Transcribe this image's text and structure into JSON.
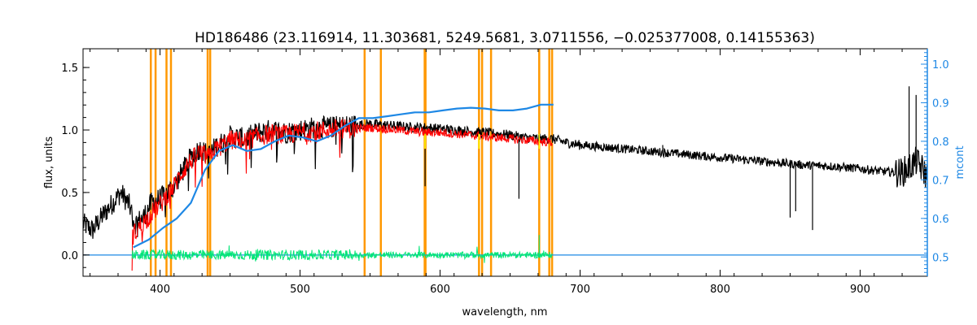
{
  "chart_data": {
    "type": "line",
    "title": "HD186486   (23.116914, 11.303681, 5249.5681, 3.0711556, −0.025377008, 0.14155363)",
    "xlabel": "wavelength, nm",
    "ylabel": "flux, units",
    "y2label": "mcont",
    "xlim": [
      345,
      948
    ],
    "ylim": [
      -0.17,
      1.65
    ],
    "y2lim": [
      0.45,
      1.04
    ],
    "x_ticks": [
      400,
      500,
      600,
      700,
      800,
      900
    ],
    "y_ticks": [
      "0.0",
      "0.5",
      "1.0",
      "1.5"
    ],
    "y2_ticks": [
      "0.5",
      "0.6",
      "0.7",
      "0.8",
      "0.9",
      "1.0"
    ],
    "grid": false,
    "colors": {
      "observed": "#000000",
      "model": "#ff0000",
      "residual": "#00e676",
      "continuum": "#1e88e5",
      "masks": "#ff9800",
      "model_lines": "#ffff00"
    },
    "mask_lines_nm": [
      393.4,
      396.8,
      404.6,
      407.8,
      434.0,
      435.8,
      546.1,
      557.7,
      589.0,
      589.6,
      627.8,
      630.0,
      636.4,
      670.8,
      678.0,
      680.0
    ],
    "series": [
      {
        "key": "observed",
        "x": [
          345,
          352,
          358,
          365,
          372,
          378,
          382,
          388,
          394,
          400,
          405,
          410,
          415,
          420,
          428,
          435,
          440,
          445,
          450,
          460,
          470,
          480,
          490,
          500,
          510,
          520,
          530,
          540,
          550,
          560,
          570,
          580,
          590,
          600,
          610,
          620,
          630,
          640,
          650,
          660,
          670,
          680,
          690,
          700,
          720,
          740,
          760,
          780,
          800,
          820,
          840,
          860,
          880,
          900,
          915,
          925,
          930,
          935,
          940,
          945,
          948
        ],
        "y": [
          0.25,
          0.2,
          0.3,
          0.4,
          0.5,
          0.4,
          0.25,
          0.3,
          0.42,
          0.45,
          0.5,
          0.55,
          0.65,
          0.75,
          0.85,
          0.8,
          0.87,
          0.9,
          0.95,
          0.93,
          0.98,
          1.0,
          0.98,
          1.0,
          1.02,
          1.02,
          1.03,
          1.04,
          1.05,
          1.04,
          1.03,
          1.02,
          1.02,
          1.01,
          1.0,
          0.99,
          0.98,
          0.97,
          0.96,
          0.94,
          0.93,
          0.93,
          0.9,
          0.88,
          0.86,
          0.84,
          0.82,
          0.8,
          0.78,
          0.76,
          0.74,
          0.72,
          0.71,
          0.69,
          0.67,
          0.66,
          0.66,
          0.7,
          0.75,
          0.68,
          0.62
        ]
      },
      {
        "key": "model",
        "x": [
          380,
          385,
          390,
          395,
          400,
          405,
          410,
          415,
          420,
          428,
          435,
          440,
          445,
          450,
          460,
          470,
          480,
          490,
          500,
          510,
          520,
          530,
          540,
          550,
          560,
          570,
          580,
          590,
          600,
          610,
          620,
          630,
          640,
          650,
          660,
          670,
          680
        ],
        "y": [
          0.15,
          0.22,
          0.28,
          0.35,
          0.4,
          0.48,
          0.55,
          0.65,
          0.73,
          0.82,
          0.78,
          0.85,
          0.88,
          0.92,
          0.91,
          0.95,
          0.97,
          0.96,
          0.98,
          0.99,
          1.0,
          1.01,
          1.01,
          1.02,
          1.01,
          1.0,
          0.99,
          0.98,
          0.98,
          0.97,
          0.96,
          0.95,
          0.94,
          0.93,
          0.92,
          0.91,
          0.9
        ]
      },
      {
        "key": "residual",
        "x": [
          380,
          680
        ],
        "y": [
          0.0,
          0.0
        ]
      },
      {
        "key": "continuum",
        "axis": "right",
        "x": [
          381,
          392,
          402,
          412,
          422,
          432,
          442,
          452,
          462,
          472,
          482,
          492,
          502,
          512,
          522,
          532,
          542,
          552,
          562,
          572,
          582,
          592,
          602,
          612,
          622,
          632,
          642,
          652,
          662,
          672,
          681
        ],
        "y": [
          0.525,
          0.545,
          0.575,
          0.6,
          0.64,
          0.725,
          0.775,
          0.79,
          0.775,
          0.78,
          0.8,
          0.815,
          0.81,
          0.8,
          0.815,
          0.84,
          0.86,
          0.86,
          0.865,
          0.87,
          0.875,
          0.875,
          0.88,
          0.885,
          0.887,
          0.885,
          0.88,
          0.88,
          0.885,
          0.895,
          0.895
        ]
      },
      {
        "key": "baseline",
        "x": [
          345,
          948
        ],
        "y": [
          0.0,
          0.0
        ]
      }
    ]
  }
}
